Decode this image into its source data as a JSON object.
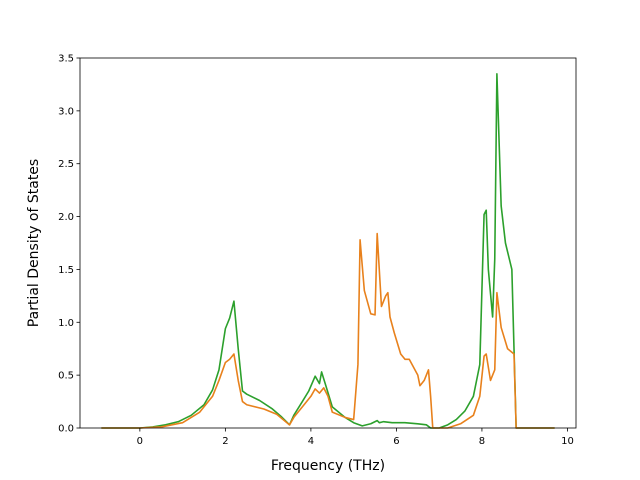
{
  "chart_data": {
    "type": "line",
    "title": "",
    "xlabel": "Frequency (THz)",
    "ylabel": "Partial Density of States",
    "xlim": [
      -1.4,
      10.2
    ],
    "ylim": [
      0.0,
      3.5
    ],
    "xticks": [
      0,
      2,
      4,
      6,
      8,
      10
    ],
    "yticks": [
      0.0,
      0.5,
      1.0,
      1.5,
      2.0,
      2.5,
      3.0,
      3.5
    ],
    "xtick_labels": [
      "0",
      "2",
      "4",
      "6",
      "8",
      "10"
    ],
    "ytick_labels": [
      "0.0",
      "0.5",
      "1.0",
      "1.5",
      "2.0",
      "2.5",
      "3.0",
      "3.5"
    ],
    "grid": false,
    "legend": "none",
    "series": [
      {
        "color": "#2ca02c",
        "points": [
          [
            -0.9,
            0.0
          ],
          [
            0.0,
            0.0
          ],
          [
            0.3,
            0.01
          ],
          [
            0.6,
            0.03
          ],
          [
            0.9,
            0.06
          ],
          [
            1.2,
            0.12
          ],
          [
            1.5,
            0.22
          ],
          [
            1.7,
            0.36
          ],
          [
            1.85,
            0.55
          ],
          [
            2.0,
            0.94
          ],
          [
            2.1,
            1.04
          ],
          [
            2.2,
            1.2
          ],
          [
            2.3,
            0.75
          ],
          [
            2.4,
            0.35
          ],
          [
            2.5,
            0.32
          ],
          [
            2.8,
            0.26
          ],
          [
            3.1,
            0.18
          ],
          [
            3.3,
            0.11
          ],
          [
            3.5,
            0.03
          ],
          [
            3.6,
            0.12
          ],
          [
            3.8,
            0.25
          ],
          [
            3.95,
            0.35
          ],
          [
            4.1,
            0.49
          ],
          [
            4.2,
            0.42
          ],
          [
            4.25,
            0.53
          ],
          [
            4.35,
            0.4
          ],
          [
            4.5,
            0.2
          ],
          [
            4.8,
            0.1
          ],
          [
            5.0,
            0.05
          ],
          [
            5.2,
            0.02
          ],
          [
            5.4,
            0.04
          ],
          [
            5.55,
            0.07
          ],
          [
            5.6,
            0.05
          ],
          [
            5.7,
            0.06
          ],
          [
            5.9,
            0.05
          ],
          [
            6.2,
            0.05
          ],
          [
            6.5,
            0.04
          ],
          [
            6.7,
            0.03
          ],
          [
            6.8,
            0.0
          ],
          [
            7.0,
            0.0
          ],
          [
            7.2,
            0.03
          ],
          [
            7.4,
            0.08
          ],
          [
            7.6,
            0.16
          ],
          [
            7.8,
            0.3
          ],
          [
            7.95,
            0.6
          ],
          [
            8.05,
            2.02
          ],
          [
            8.1,
            2.06
          ],
          [
            8.15,
            1.5
          ],
          [
            8.25,
            1.05
          ],
          [
            8.3,
            1.6
          ],
          [
            8.35,
            3.35
          ],
          [
            8.45,
            2.1
          ],
          [
            8.55,
            1.75
          ],
          [
            8.7,
            1.5
          ],
          [
            8.8,
            0.0
          ],
          [
            9.7,
            0.0
          ]
        ]
      },
      {
        "color": "#e8811c",
        "points": [
          [
            -0.9,
            0.0
          ],
          [
            0.0,
            0.0
          ],
          [
            0.5,
            0.01
          ],
          [
            1.0,
            0.05
          ],
          [
            1.4,
            0.15
          ],
          [
            1.7,
            0.3
          ],
          [
            1.85,
            0.45
          ],
          [
            2.0,
            0.62
          ],
          [
            2.1,
            0.65
          ],
          [
            2.2,
            0.7
          ],
          [
            2.3,
            0.45
          ],
          [
            2.4,
            0.25
          ],
          [
            2.5,
            0.22
          ],
          [
            2.9,
            0.18
          ],
          [
            3.2,
            0.13
          ],
          [
            3.5,
            0.03
          ],
          [
            3.6,
            0.1
          ],
          [
            3.8,
            0.2
          ],
          [
            4.0,
            0.3
          ],
          [
            4.1,
            0.37
          ],
          [
            4.2,
            0.33
          ],
          [
            4.3,
            0.38
          ],
          [
            4.4,
            0.3
          ],
          [
            4.5,
            0.15
          ],
          [
            4.8,
            0.1
          ],
          [
            5.0,
            0.08
          ],
          [
            5.1,
            0.6
          ],
          [
            5.15,
            1.78
          ],
          [
            5.25,
            1.3
          ],
          [
            5.4,
            1.08
          ],
          [
            5.5,
            1.07
          ],
          [
            5.55,
            1.84
          ],
          [
            5.65,
            1.15
          ],
          [
            5.75,
            1.25
          ],
          [
            5.8,
            1.28
          ],
          [
            5.85,
            1.05
          ],
          [
            5.95,
            0.9
          ],
          [
            6.1,
            0.7
          ],
          [
            6.2,
            0.65
          ],
          [
            6.3,
            0.65
          ],
          [
            6.5,
            0.5
          ],
          [
            6.55,
            0.4
          ],
          [
            6.65,
            0.45
          ],
          [
            6.75,
            0.55
          ],
          [
            6.8,
            0.3
          ],
          [
            6.85,
            0.0
          ],
          [
            7.2,
            0.0
          ],
          [
            7.5,
            0.04
          ],
          [
            7.8,
            0.12
          ],
          [
            7.95,
            0.3
          ],
          [
            8.05,
            0.68
          ],
          [
            8.1,
            0.7
          ],
          [
            8.2,
            0.45
          ],
          [
            8.3,
            0.55
          ],
          [
            8.35,
            1.28
          ],
          [
            8.45,
            0.95
          ],
          [
            8.6,
            0.75
          ],
          [
            8.75,
            0.7
          ],
          [
            8.8,
            0.0
          ],
          [
            9.7,
            0.0
          ]
        ]
      }
    ]
  }
}
